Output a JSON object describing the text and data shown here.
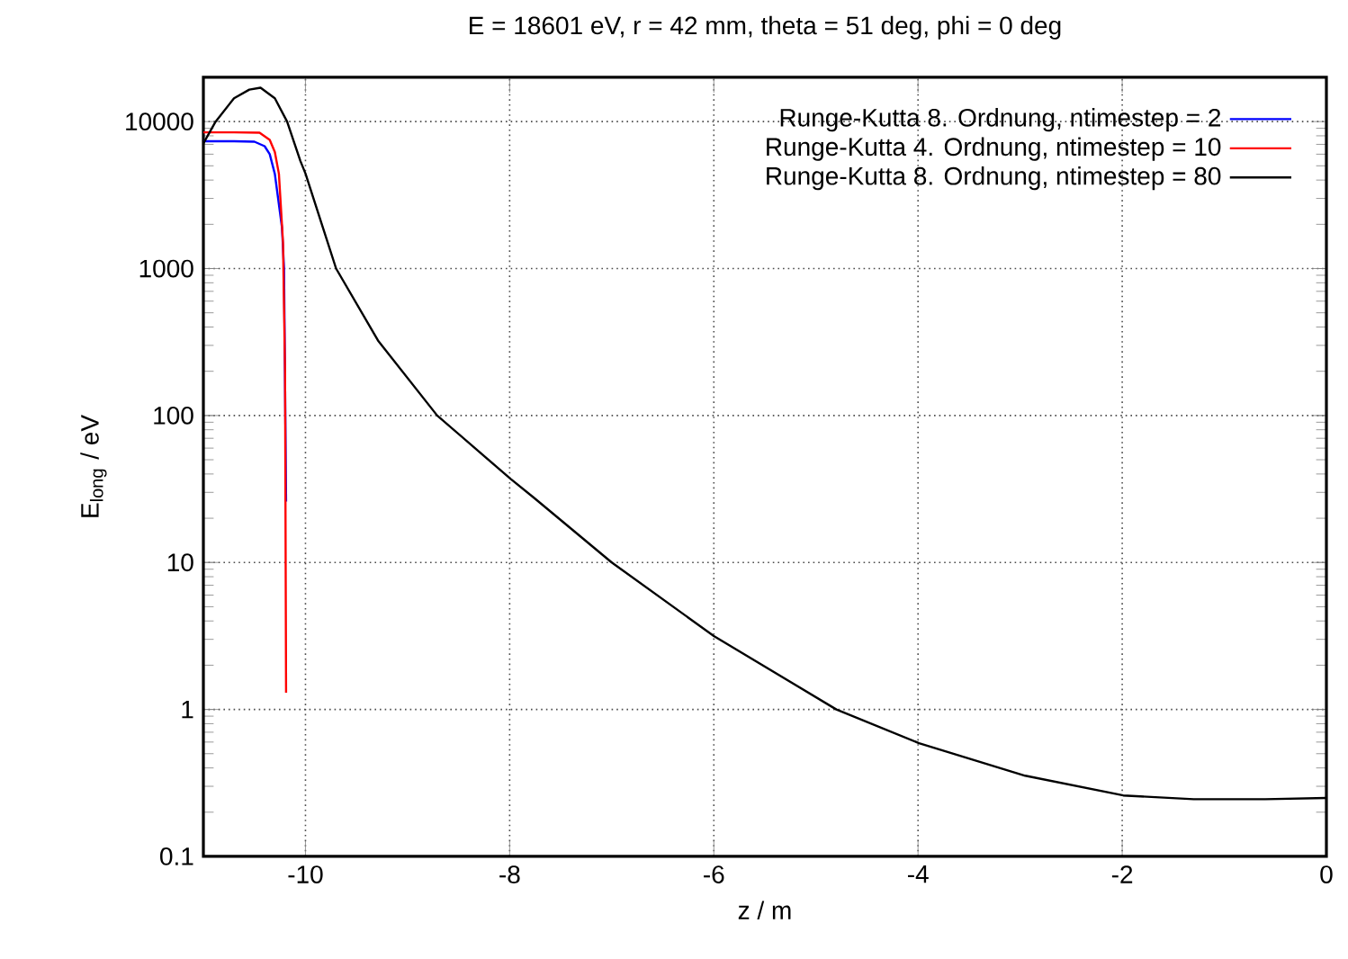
{
  "chart_data": {
    "type": "line",
    "title": "E = 18601 eV, r = 42 mm, theta = 51 deg, phi = 0 deg",
    "xlabel": "z / m",
    "ylabel": "E$_{long}$ / eV",
    "xlim": [
      -11,
      0
    ],
    "xticks": [
      -10,
      -8,
      -6,
      -4,
      -2,
      0
    ],
    "ylim": [
      0.1,
      20000
    ],
    "yticks": [
      0.1,
      1,
      10,
      100,
      1000,
      10000
    ],
    "log": "y",
    "grid": true,
    "legend": "top right",
    "marker": "none",
    "line_style": "solid",
    "series": [
      {
        "name": "Runge-Kutta 8. Ordnung, ntimestep = 2",
        "color": "#0000ff",
        "x": [
          -11,
          -10.7,
          -10.5,
          -10.4,
          -10.35,
          -10.3,
          -10.23,
          -10.21,
          -10.19
        ],
        "values": [
          7350,
          7350,
          7300,
          6800,
          6000,
          4400,
          1900,
          1000,
          26
        ]
      },
      {
        "name": "Runge-Kutta 4. Ordnung, ntimestep = 10",
        "color": "#ff0000",
        "x": [
          -11,
          -10.7,
          -10.45,
          -10.35,
          -10.3,
          -10.26,
          -10.22,
          -10.2,
          -10.19
        ],
        "values": [
          8450,
          8450,
          8400,
          7500,
          6200,
          4400,
          1500,
          200,
          1.3
        ]
      },
      {
        "name": "Runge-Kutta 8. Ordnung, ntimestep = 80",
        "color": "#000000",
        "x": [
          -11,
          -10.88,
          -10.7,
          -10.55,
          -10.44,
          -10.3,
          -10.18,
          -10.05,
          -10,
          -9.7,
          -9.29,
          -8.71,
          -7.99,
          -7.76,
          -7,
          -6,
          -4.8,
          -3.99,
          -2.95,
          -1.99,
          -1.3,
          -0.6,
          0
        ],
        "values": [
          7100,
          10000,
          14400,
          16500,
          17000,
          14400,
          10000,
          5400,
          4430,
          1000,
          324,
          100,
          37,
          27.5,
          10,
          3.16,
          1,
          0.59,
          0.354,
          0.26,
          0.245,
          0.245,
          0.25
        ]
      }
    ]
  }
}
